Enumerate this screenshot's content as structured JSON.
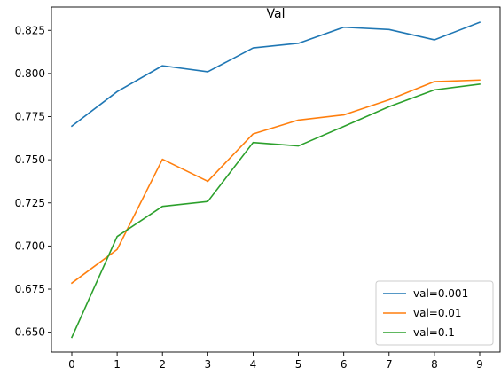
{
  "chart_data": {
    "type": "line",
    "title": "Val",
    "xlabel": "",
    "ylabel": "",
    "x": [
      0,
      1,
      2,
      3,
      4,
      5,
      6,
      7,
      8,
      9
    ],
    "xlim": [
      -0.45,
      9.45
    ],
    "ylim": [
      0.6385,
      0.8385
    ],
    "xticks": [
      0,
      1,
      2,
      3,
      4,
      5,
      6,
      7,
      8,
      9
    ],
    "yticks": [
      0.65,
      0.675,
      0.7,
      0.725,
      0.75,
      0.775,
      0.8,
      0.825
    ],
    "ytick_labels": [
      "0.650",
      "0.675",
      "0.700",
      "0.725",
      "0.750",
      "0.775",
      "0.800",
      "0.825"
    ],
    "grid": false,
    "legend_position": "lower-right",
    "series": [
      {
        "name": "val=0.001",
        "color": "#1f77b4",
        "values": [
          0.7695,
          0.7895,
          0.8045,
          0.801,
          0.8148,
          0.8175,
          0.8268,
          0.8255,
          0.8195,
          0.8297
        ]
      },
      {
        "name": "val=0.01",
        "color": "#ff7f0e",
        "values": [
          0.6785,
          0.698,
          0.7503,
          0.7375,
          0.765,
          0.773,
          0.776,
          0.7848,
          0.7953,
          0.7962
        ]
      },
      {
        "name": "val=0.1",
        "color": "#2ca02c",
        "values": [
          0.647,
          0.7055,
          0.723,
          0.7258,
          0.76,
          0.758,
          0.7693,
          0.7808,
          0.7905,
          0.7938
        ]
      }
    ]
  }
}
